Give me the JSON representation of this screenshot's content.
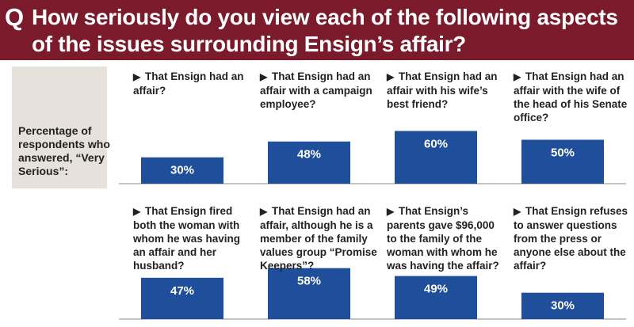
{
  "header": {
    "q_mark": "Q",
    "title": "How seriously do you view each of the following aspects of the issues surrounding Ensign’s affair?"
  },
  "left_label": "Percentage of respondents who answered, “Very Serious”:",
  "colors": {
    "header_bg": "#7a1a2b",
    "bar": "#1f4e9a",
    "panel": "#e6e2db"
  },
  "chart_data": {
    "type": "bar",
    "arrow_icon": "triangle-right-icon",
    "categories": [
      "That Ensign had an affair?",
      "That Ensign had an affair with a campaign employee?",
      "That Ensign had an affair with his wife’s best friend?",
      "That Ensign had an affair with the wife of the head of his Senate office?",
      "That Ensign fired both the woman with whom he was having an affair and her husband?",
      "That Ensign had an affair, although he is a member of the family values group “Promise Keepers”?",
      "That Ensign’s parents gave $96,000 to the family of the woman with whom he was having the affair?",
      "That Ensign refuses to answer questions from the press or anyone else about the affair?"
    ],
    "values": [
      30,
      48,
      60,
      50,
      47,
      58,
      49,
      30
    ],
    "value_labels": [
      "30%",
      "48%",
      "60%",
      "50%",
      "47%",
      "58%",
      "49%",
      "30%"
    ],
    "ylim": [
      0,
      100
    ]
  }
}
